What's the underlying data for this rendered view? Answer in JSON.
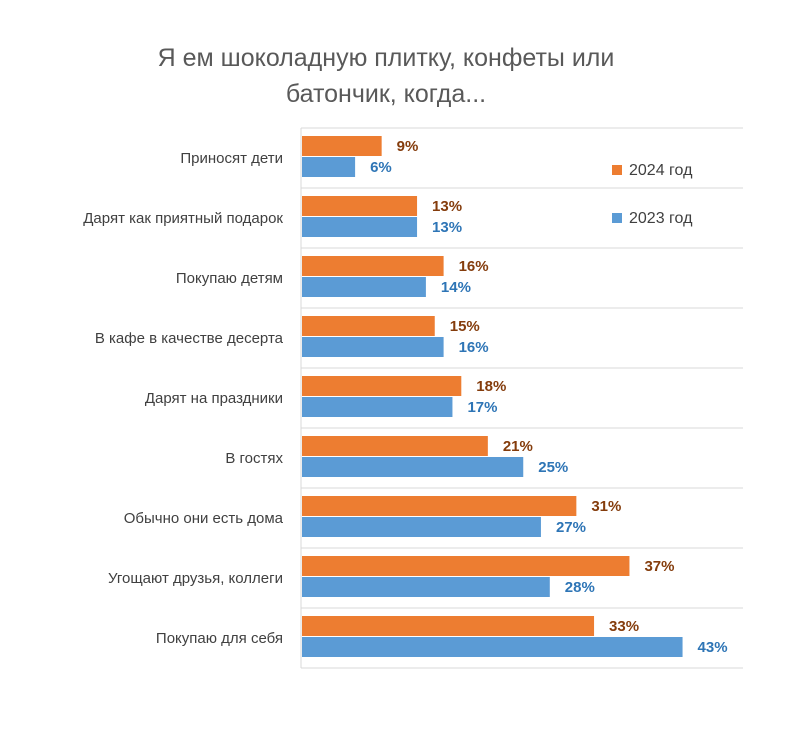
{
  "chart_data": {
    "type": "bar",
    "orientation": "horizontal",
    "title": [
      "Я ем шоколадную плитку, конфеты или",
      "батончик, когда..."
    ],
    "categories": [
      "Приносят дети",
      "Дарят как приятный подарок",
      "Покупаю детям",
      "В кафе в качестве десерта",
      "Дарят на праздники",
      "В гостях",
      "Обычно они есть дома",
      "Угощают друзья, коллеги",
      "Покупаю для себя"
    ],
    "series": [
      {
        "name": "2024 год",
        "color": "#ed7d31",
        "values": [
          9,
          13,
          16,
          15,
          18,
          21,
          31,
          37,
          33
        ],
        "labels": [
          "9%",
          "13%",
          "16%",
          "15%",
          "18%",
          "21%",
          "31%",
          "37%",
          "33%"
        ]
      },
      {
        "name": "2023 год",
        "color": "#5b9bd5",
        "values": [
          6,
          13,
          14,
          16,
          17,
          25,
          27,
          28,
          43
        ],
        "labels": [
          "6%",
          "13%",
          "14%",
          "16%",
          "17%",
          "25%",
          "27%",
          "28%",
          "43%"
        ]
      }
    ],
    "xlim": [
      0,
      50
    ],
    "grid": true,
    "legend_position": "top-right"
  }
}
